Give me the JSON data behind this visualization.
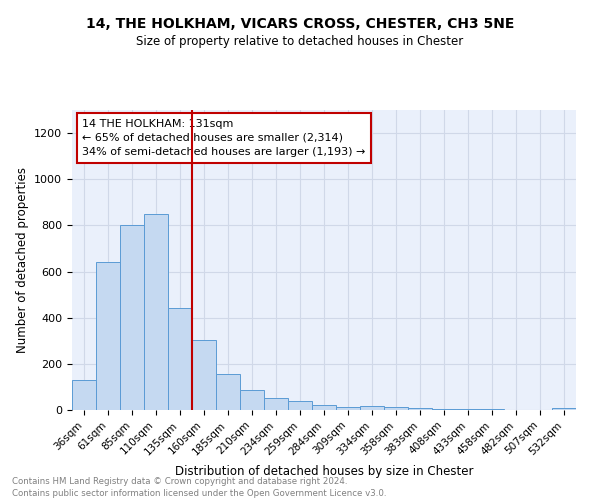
{
  "title": "14, THE HOLKHAM, VICARS CROSS, CHESTER, CH3 5NE",
  "subtitle": "Size of property relative to detached houses in Chester",
  "xlabel": "Distribution of detached houses by size in Chester",
  "ylabel": "Number of detached properties",
  "footer_line1": "Contains HM Land Registry data © Crown copyright and database right 2024.",
  "footer_line2": "Contains public sector information licensed under the Open Government Licence v3.0.",
  "categories": [
    "36sqm",
    "61sqm",
    "85sqm",
    "110sqm",
    "135sqm",
    "160sqm",
    "185sqm",
    "210sqm",
    "234sqm",
    "259sqm",
    "284sqm",
    "309sqm",
    "334sqm",
    "358sqm",
    "383sqm",
    "408sqm",
    "433sqm",
    "458sqm",
    "482sqm",
    "507sqm",
    "532sqm"
  ],
  "values": [
    130,
    640,
    800,
    850,
    440,
    305,
    155,
    85,
    50,
    40,
    20,
    15,
    17,
    15,
    10,
    5,
    3,
    3,
    2,
    2,
    10
  ],
  "bar_color": "#c5d9f1",
  "bar_edge_color": "#5b9bd5",
  "vline_color": "#c00000",
  "vline_x_index": 4,
  "annotation_line1": "14 THE HOLKHAM: 131sqm",
  "annotation_line2": "← 65% of detached houses are smaller (2,314)",
  "annotation_line3": "34% of semi-detached houses are larger (1,193) →",
  "annotation_box_color": "#c00000",
  "ylim": [
    0,
    1300
  ],
  "yticks": [
    0,
    200,
    400,
    600,
    800,
    1000,
    1200
  ],
  "grid_color": "#d0d8e8",
  "bg_color": "#eaf0fb"
}
